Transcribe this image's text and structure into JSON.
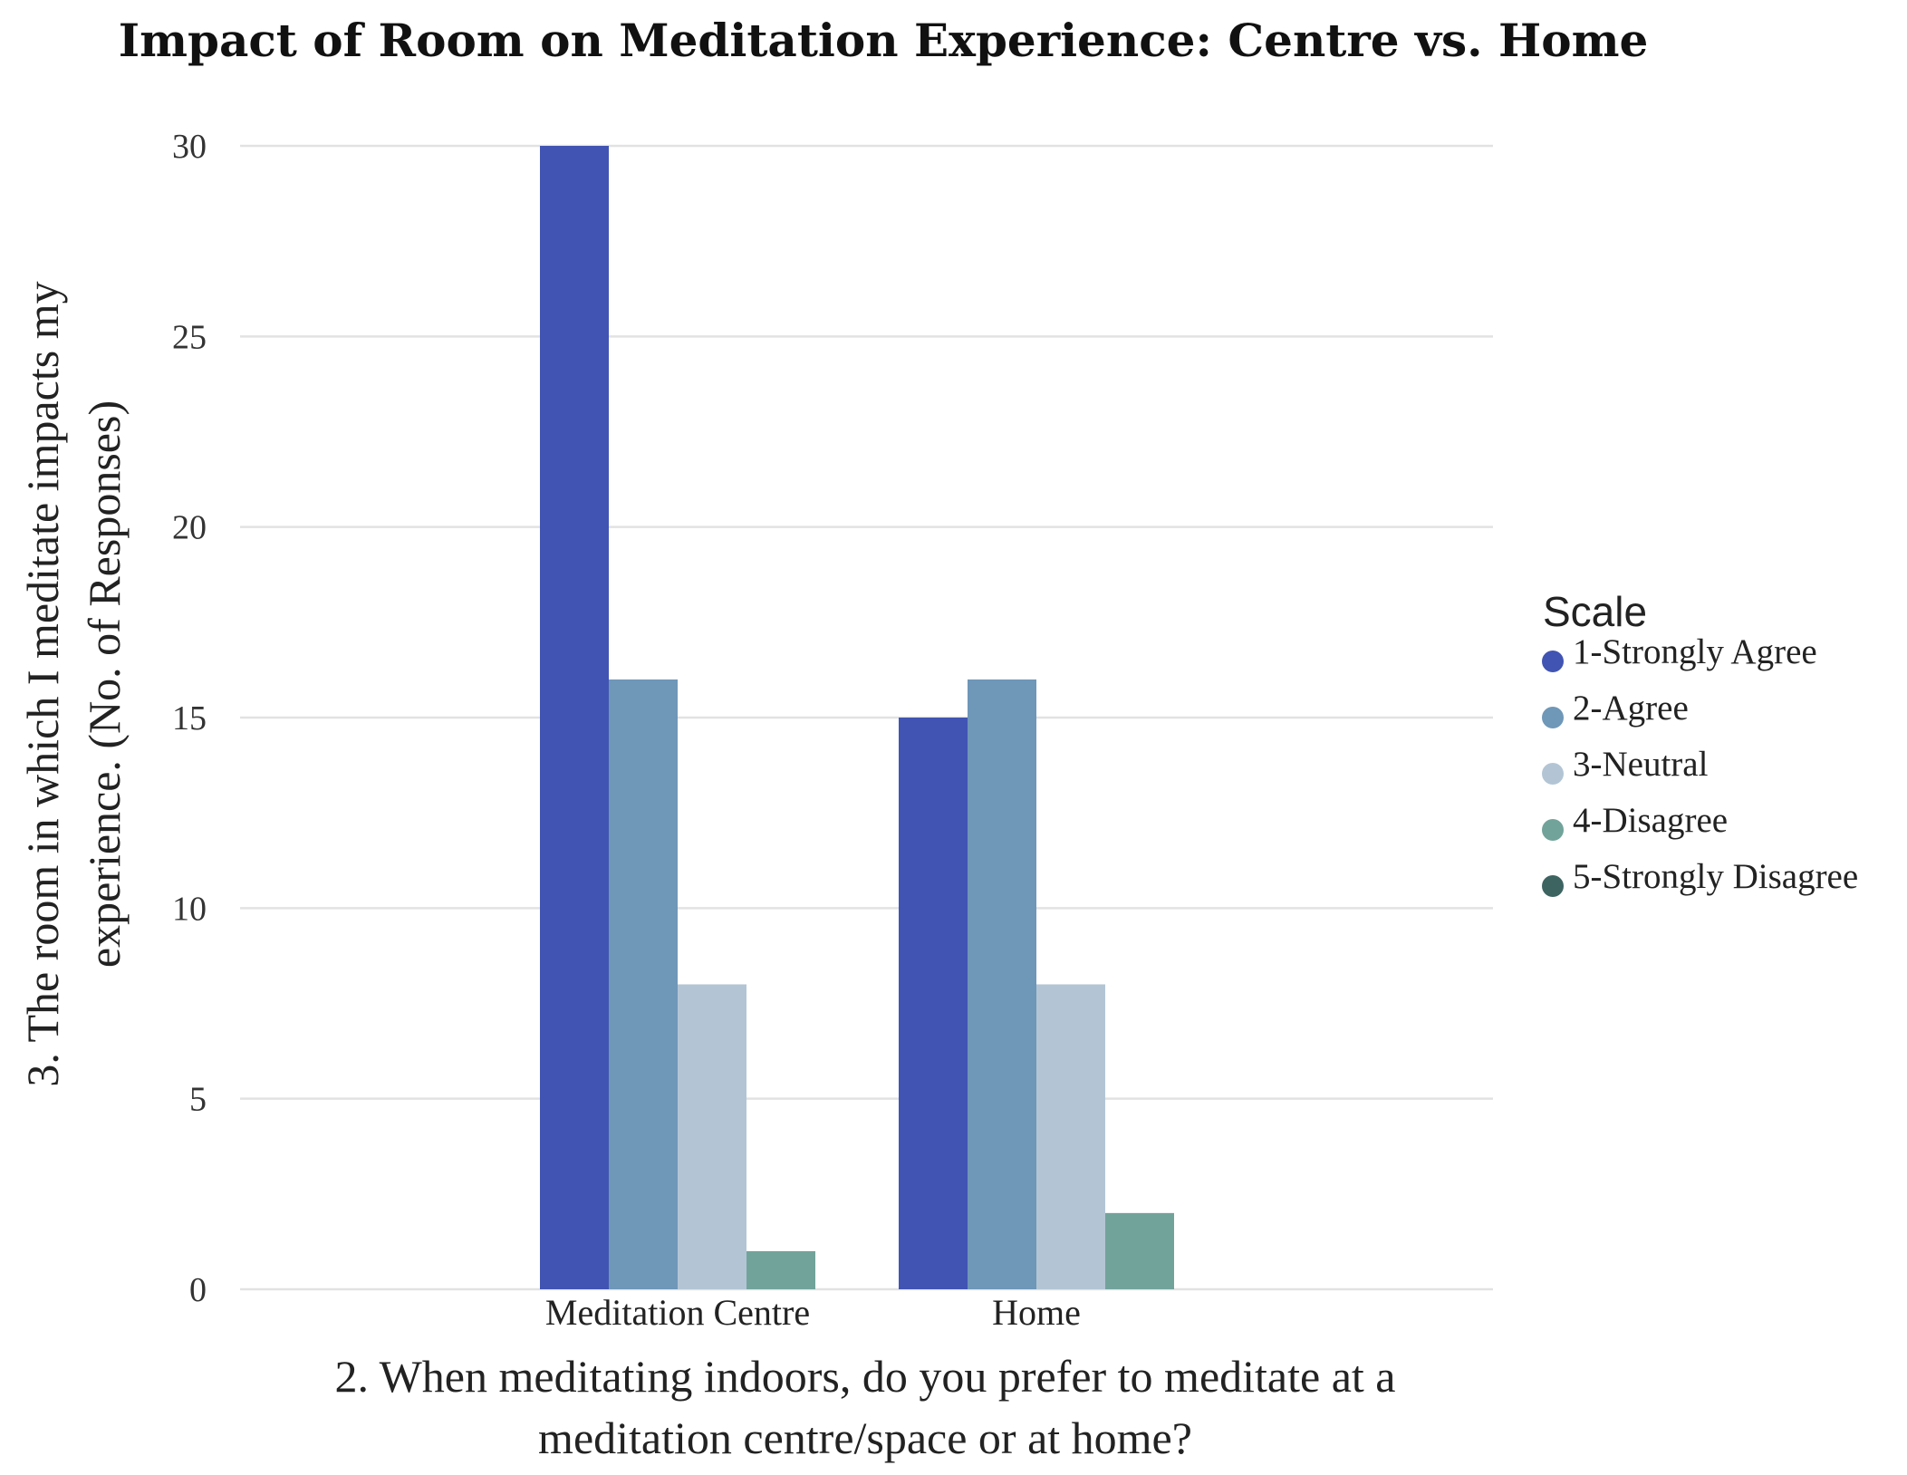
{
  "chart_data": {
    "type": "bar",
    "title": "Impact of Room on Meditation Experience: Centre vs. Home",
    "xlabel": [
      "2. When meditating indoors, do you prefer to meditate at a",
      "meditation centre/space or at home?"
    ],
    "ylabel": [
      "3. The room in which I meditate impacts my",
      "experience. (No. of Responses)"
    ],
    "categories": [
      "Meditation Centre",
      "Home"
    ],
    "ylim": [
      0,
      30
    ],
    "yticks": [
      0,
      5,
      10,
      15,
      20,
      25,
      30
    ],
    "grid": true,
    "legend": {
      "title": "Scale",
      "position": "right"
    },
    "series": [
      {
        "name": "1-Strongly Agree",
        "color": "#4154b3",
        "values": [
          30,
          15
        ]
      },
      {
        "name": "2-Agree",
        "color": "#6f97b8",
        "values": [
          16,
          16
        ]
      },
      {
        "name": "3-Neutral",
        "color": "#b3c5d5",
        "values": [
          8,
          8
        ]
      },
      {
        "name": "4-Disagree",
        "color": "#72a39b",
        "values": [
          1,
          2
        ]
      },
      {
        "name": "5-Strongly Disagree",
        "color": "#3e6462",
        "values": [
          0,
          0
        ]
      }
    ]
  }
}
